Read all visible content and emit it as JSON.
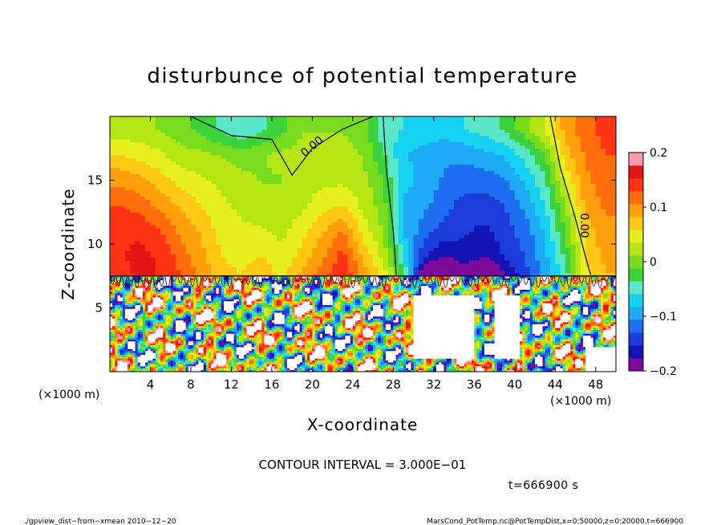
{
  "chart_data": {
    "type": "heatmap",
    "title": "disturbunce of potential temperature",
    "xlabel": "X-coordinate",
    "ylabel": "Z-coordinate",
    "x_unit": "(×1000 m)",
    "y_unit": "(×1000 m)",
    "xlim": [
      0,
      50
    ],
    "ylim": [
      0,
      20
    ],
    "x_ticks": [
      4,
      8,
      12,
      16,
      20,
      24,
      28,
      32,
      36,
      40,
      44,
      48
    ],
    "y_ticks": [
      5,
      10,
      15
    ],
    "colorbar": {
      "range": [
        -0.2,
        0.2
      ],
      "tick_values": [
        -0.2,
        -0.1,
        0,
        0.1,
        0.2
      ],
      "tick_labels": [
        "−0.2",
        "−0.1",
        "0",
        "0.1",
        "0.2"
      ],
      "colors": [
        "#7d0a9c",
        "#1414b4",
        "#1e3cdc",
        "#1e6ef0",
        "#1eaaf5",
        "#14d2f0",
        "#5ae6c8",
        "#3cd23c",
        "#78dc1e",
        "#b4e614",
        "#e6ee1e",
        "#ffc814",
        "#ffa00a",
        "#ff6e0a",
        "#ff3214",
        "#e61414",
        "#ff9aaa"
      ]
    },
    "contour_labels": [
      "0.00",
      "0.00"
    ],
    "contour_interval_text": "CONTOUR INTERVAL = 3.000E−01",
    "time_text": "t=666900 s",
    "grid": false,
    "legend": "colorbar-right",
    "upper_region_z_from": 7.5,
    "upper_region_columns": {
      "x": [
        1,
        3,
        5,
        7,
        9,
        11,
        13,
        15,
        17,
        19,
        21,
        23,
        25,
        27,
        29,
        31,
        33,
        35,
        37,
        39,
        41,
        43,
        45,
        47,
        49
      ],
      "z_levels": [
        7.5,
        9,
        11,
        13,
        15,
        17,
        19
      ],
      "values": [
        [
          0.14,
          0.15,
          0.15,
          0.13,
          0.1,
          0.06,
          0.02
        ],
        [
          0.16,
          0.16,
          0.15,
          0.12,
          0.09,
          0.05,
          0.02
        ],
        [
          0.15,
          0.15,
          0.13,
          0.1,
          0.07,
          0.04,
          0.01
        ],
        [
          0.13,
          0.12,
          0.1,
          0.08,
          0.05,
          0.02,
          0.0
        ],
        [
          0.1,
          0.09,
          0.08,
          0.06,
          0.04,
          0.02,
          -0.02
        ],
        [
          0.07,
          0.06,
          0.05,
          0.04,
          0.03,
          0.01,
          -0.04
        ],
        [
          0.06,
          0.05,
          0.04,
          0.03,
          0.02,
          0.0,
          -0.06
        ],
        [
          0.08,
          0.06,
          0.04,
          0.02,
          0.01,
          0.01,
          -0.04
        ],
        [
          0.05,
          0.04,
          0.03,
          0.02,
          0.01,
          0.02,
          -0.02
        ],
        [
          0.09,
          0.07,
          0.05,
          0.03,
          0.02,
          0.02,
          0.01
        ],
        [
          0.12,
          0.1,
          0.08,
          0.05,
          0.03,
          0.02,
          0.01
        ],
        [
          0.15,
          0.14,
          0.11,
          0.06,
          0.03,
          0.02,
          0.01
        ],
        [
          0.1,
          0.08,
          0.05,
          0.03,
          0.02,
          0.01,
          0.0
        ],
        [
          0.05,
          0.03,
          0.01,
          0.0,
          -0.01,
          -0.03,
          -0.05
        ],
        [
          -0.02,
          -0.06,
          -0.08,
          -0.09,
          -0.07,
          -0.08,
          -0.06
        ],
        [
          -0.22,
          -0.15,
          -0.12,
          -0.1,
          -0.09,
          -0.09,
          -0.07
        ],
        [
          -0.24,
          -0.18,
          -0.14,
          -0.12,
          -0.11,
          -0.1,
          -0.07
        ],
        [
          -0.2,
          -0.16,
          -0.15,
          -0.14,
          -0.12,
          -0.1,
          -0.06
        ],
        [
          -0.23,
          -0.18,
          -0.16,
          -0.14,
          -0.12,
          -0.09,
          -0.05
        ],
        [
          -0.18,
          -0.15,
          -0.14,
          -0.13,
          -0.11,
          -0.08,
          -0.03
        ],
        [
          -0.14,
          -0.13,
          -0.12,
          -0.1,
          -0.08,
          -0.05,
          0.0
        ],
        [
          -0.1,
          -0.09,
          -0.08,
          -0.06,
          -0.04,
          -0.01,
          0.04
        ],
        [
          -0.05,
          -0.03,
          -0.01,
          0.01,
          0.04,
          0.07,
          0.09
        ],
        [
          0.05,
          0.06,
          0.07,
          0.09,
          0.1,
          0.11,
          0.12
        ],
        [
          0.08,
          0.09,
          0.1,
          0.11,
          0.12,
          0.13,
          0.14
        ]
      ]
    }
  },
  "footer": {
    "left": "./gpview_dist−from−xmean   2010−12−20",
    "right": "MarsCond_PotTemp.nc@PotTempDist,x=0:50000,z=0:20000,t=666900"
  }
}
